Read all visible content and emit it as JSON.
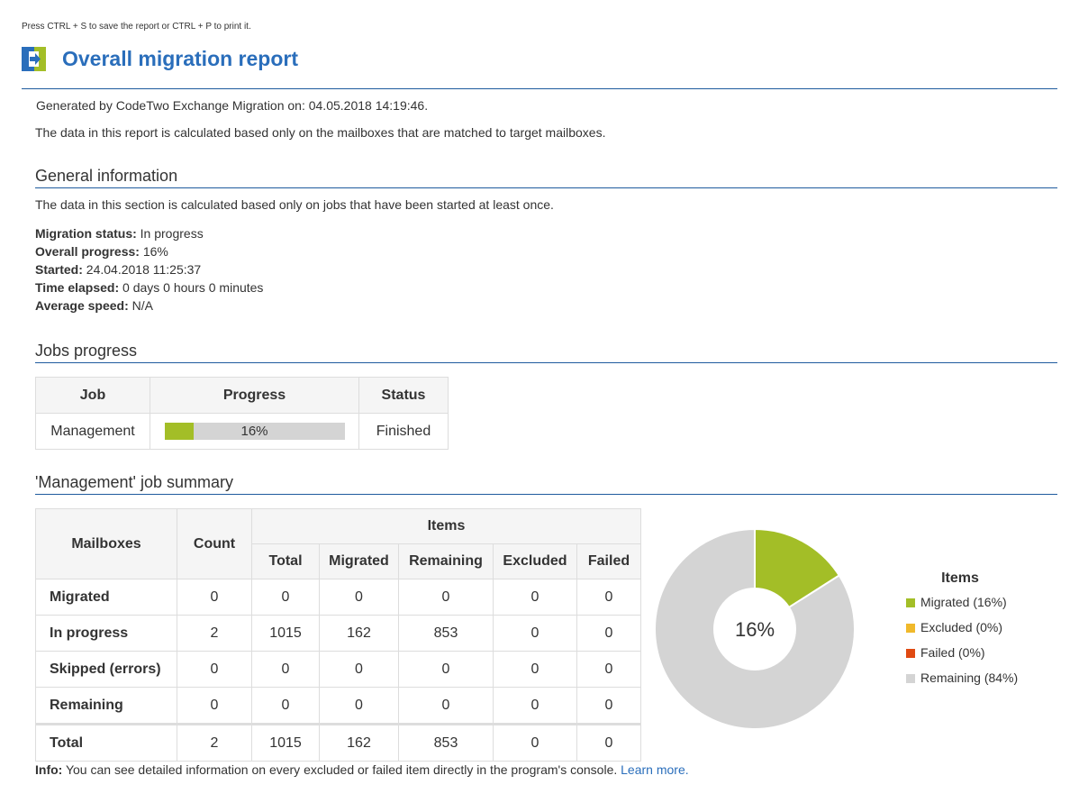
{
  "hint": "Press CTRL + S to save the report or CTRL + P to print it.",
  "title": "Overall migration report",
  "colors": {
    "accent": "#2a6ebb",
    "migrated": "#a3be27",
    "excluded": "#f0b92b",
    "failed": "#e04a12",
    "remaining": "#d4d4d4",
    "logo_green": "#a3be27"
  },
  "icons": {
    "logo": "codetwo-logo-icon"
  },
  "generated": "Generated by CodeTwo Exchange Migration on: 04.05.2018 14:19:46.",
  "note": "The data in this report is calculated based only on the mailboxes that are matched to target mailboxes.",
  "general": {
    "title": "General information",
    "note": "The data in this section is calculated based only on jobs that have been started at least once.",
    "items": [
      {
        "label": "Migration status:",
        "value": "In progress"
      },
      {
        "label": "Overall progress:",
        "value": "16%"
      },
      {
        "label": "Started:",
        "value": "24.04.2018 11:25:37"
      },
      {
        "label": "Time elapsed:",
        "value": "0 days 0 hours 0 minutes"
      },
      {
        "label": "Average speed:",
        "value": "N/A"
      }
    ]
  },
  "jobs": {
    "title": "Jobs progress",
    "headers": {
      "job": "Job",
      "progress": "Progress",
      "status": "Status"
    },
    "rows": [
      {
        "job": "Management",
        "progress": 0.16,
        "progress_label": "16%",
        "status": "Finished"
      }
    ]
  },
  "summary": {
    "title": "'Management' job summary",
    "headers": {
      "mailboxes": "Mailboxes",
      "count": "Count",
      "items": "Items",
      "total": "Total",
      "migrated": "Migrated",
      "remaining": "Remaining",
      "excluded": "Excluded",
      "failed": "Failed"
    },
    "rows": [
      {
        "label": "Migrated",
        "count": "0",
        "total": "0",
        "migrated": "0",
        "remaining": "0",
        "excluded": "0",
        "failed": "0"
      },
      {
        "label": "In progress",
        "count": "2",
        "total": "1015",
        "migrated": "162",
        "remaining": "853",
        "excluded": "0",
        "failed": "0"
      },
      {
        "label": "Skipped (errors)",
        "count": "0",
        "total": "0",
        "migrated": "0",
        "remaining": "0",
        "excluded": "0",
        "failed": "0"
      },
      {
        "label": "Remaining",
        "count": "0",
        "total": "0",
        "migrated": "0",
        "remaining": "0",
        "excluded": "0",
        "failed": "0"
      }
    ],
    "total_row": {
      "label": "Total",
      "count": "2",
      "total": "1015",
      "migrated": "162",
      "remaining": "853",
      "excluded": "0",
      "failed": "0"
    }
  },
  "chart_data": {
    "type": "pie",
    "center_label": "16%",
    "legend_title": "Items",
    "slices": [
      {
        "name": "Migrated (16%)",
        "value": 16,
        "color": "#a3be27"
      },
      {
        "name": "Excluded (0%)",
        "value": 0,
        "color": "#f0b92b"
      },
      {
        "name": "Failed (0%)",
        "value": 0,
        "color": "#e04a12"
      },
      {
        "name": "Remaining (84%)",
        "value": 84,
        "color": "#d4d4d4"
      }
    ],
    "legend": "right"
  },
  "info": {
    "label": "Info:",
    "text": " You can see detailed information on every excluded or failed item directly in the program's console. ",
    "link": "Learn more."
  }
}
